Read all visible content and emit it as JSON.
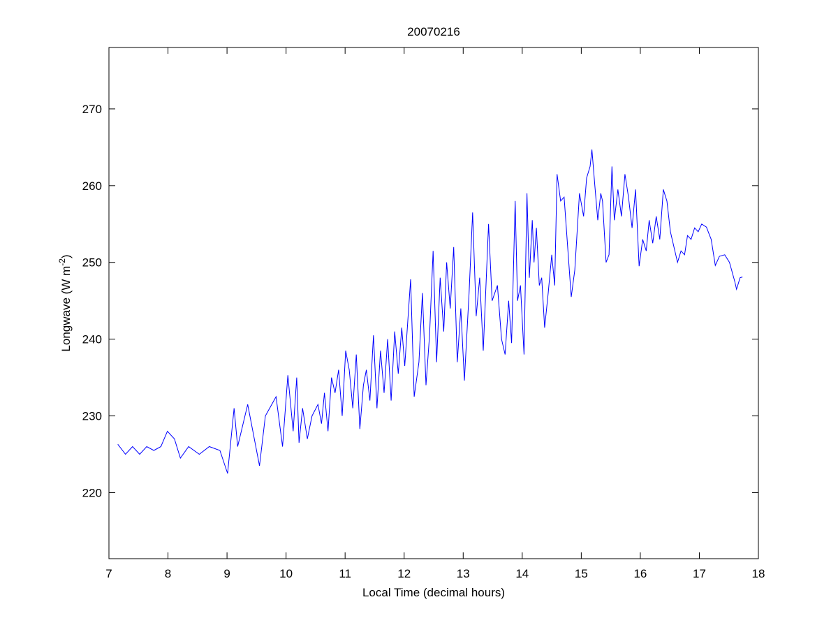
{
  "chart_data": {
    "type": "line",
    "title": "20070216",
    "xlabel": "Local Time (decimal hours)",
    "ylabel": {
      "text": "Longwave (W m",
      "sup": "-2",
      "end": ")"
    },
    "xlim": [
      7,
      18
    ],
    "ylim": [
      211.4,
      278
    ],
    "xticks": [
      7,
      8,
      9,
      10,
      11,
      12,
      13,
      14,
      15,
      16,
      17,
      18
    ],
    "yticks": [
      220,
      230,
      240,
      250,
      260,
      270
    ],
    "grid": false,
    "line_color": "#0000ff",
    "series": [
      {
        "name": "Longwave",
        "x": [
          7.15,
          7.28,
          7.4,
          7.52,
          7.64,
          7.76,
          7.88,
          7.99,
          8.11,
          8.21,
          8.35,
          8.53,
          8.7,
          8.88,
          9.01,
          9.12,
          9.18,
          9.35,
          9.55,
          9.65,
          9.83,
          9.94,
          10.03,
          10.12,
          10.18,
          10.22,
          10.28,
          10.36,
          10.44,
          10.54,
          10.6,
          10.65,
          10.71,
          10.77,
          10.83,
          10.89,
          10.95,
          11.01,
          11.07,
          11.13,
          11.19,
          11.25,
          11.31,
          11.36,
          11.42,
          11.48,
          11.54,
          11.6,
          11.66,
          11.72,
          11.78,
          11.84,
          11.9,
          11.96,
          12.01,
          12.11,
          12.17,
          12.25,
          12.31,
          12.37,
          12.43,
          12.49,
          12.55,
          12.61,
          12.67,
          12.72,
          12.78,
          12.84,
          12.9,
          12.96,
          13.02,
          13.1,
          13.16,
          13.22,
          13.28,
          13.34,
          13.43,
          13.49,
          13.58,
          13.65,
          13.71,
          13.77,
          13.82,
          13.88,
          13.92,
          13.97,
          14.03,
          14.08,
          14.12,
          14.17,
          14.2,
          14.24,
          14.29,
          14.33,
          14.38,
          14.44,
          14.5,
          14.55,
          14.59,
          14.65,
          14.71,
          14.77,
          14.83,
          14.89,
          14.97,
          15.04,
          15.09,
          15.15,
          15.18,
          15.23,
          15.28,
          15.33,
          15.36,
          15.42,
          15.47,
          15.52,
          15.56,
          15.62,
          15.68,
          15.74,
          15.8,
          15.86,
          15.92,
          15.98,
          16.04,
          16.1,
          16.15,
          16.21,
          16.27,
          16.33,
          16.39,
          16.45,
          16.51,
          16.57,
          16.63,
          16.69,
          16.75,
          16.8,
          16.86,
          16.92,
          16.98,
          17.04,
          17.12,
          17.2,
          17.27,
          17.34,
          17.43,
          17.51,
          17.6,
          17.63,
          17.69,
          17.73
        ],
        "y": [
          226.3,
          225,
          226,
          225,
          226,
          225.5,
          226,
          228,
          227,
          224.5,
          226,
          225,
          226,
          225.5,
          222.5,
          231,
          226,
          231.5,
          223.5,
          230,
          232.5,
          226,
          235.3,
          228,
          235,
          226.5,
          231,
          227,
          230,
          231.5,
          229,
          233,
          228,
          235,
          233,
          236,
          230,
          238.5,
          236,
          231,
          238,
          228.3,
          234,
          236,
          232,
          240.5,
          231,
          238.5,
          233,
          240,
          232,
          241,
          235.5,
          241.5,
          236.5,
          247.8,
          232.5,
          237,
          246,
          234,
          240.5,
          251.5,
          237,
          248,
          241,
          250,
          244,
          252,
          237,
          244,
          234.6,
          246,
          256.5,
          243,
          248,
          238.5,
          255,
          245,
          247,
          240,
          238,
          245,
          239.5,
          258,
          245,
          247,
          238,
          259,
          248,
          255.5,
          250,
          254.5,
          247,
          248,
          241.5,
          246,
          251,
          247,
          261.5,
          258,
          258.5,
          252,
          245.5,
          249,
          259,
          256,
          261,
          262.5,
          264.7,
          260,
          255.5,
          259,
          258,
          250,
          251,
          262.5,
          255.5,
          259.5,
          256,
          261.5,
          258.5,
          254.5,
          259.5,
          249.5,
          253,
          251.5,
          255.5,
          252.5,
          256,
          253,
          259.5,
          258,
          254,
          252,
          250,
          251.5,
          251,
          253.5,
          253,
          254.5,
          254,
          255,
          254.6,
          253,
          249.6,
          250.8,
          251,
          250,
          247.5,
          246.5,
          248,
          248.1
        ]
      }
    ]
  }
}
